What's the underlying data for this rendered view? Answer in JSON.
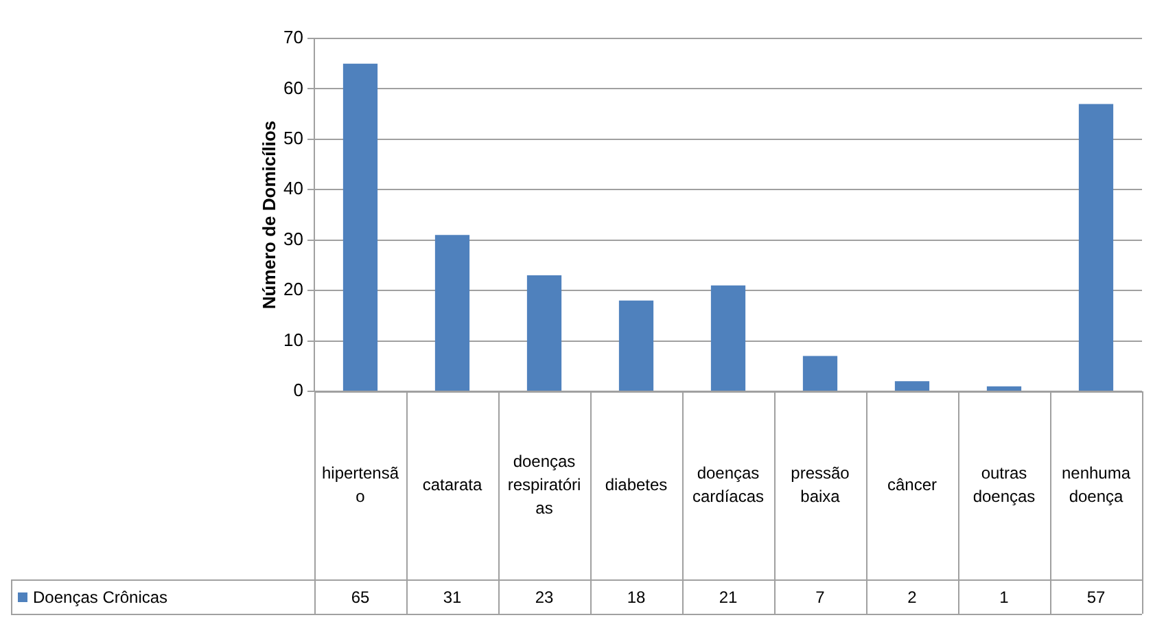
{
  "chart_data": {
    "type": "bar",
    "ylabel": "Número de Domicílios",
    "categories": [
      "hipertensão",
      "catarata",
      "doenças respiratórias",
      "diabetes",
      "doenças cardíacas",
      "pressão baixa",
      "câncer",
      "outras doenças",
      "nenhuma doença"
    ],
    "series": [
      {
        "name": "Doenças Crônicas",
        "color": "#4f81bd",
        "values": [
          65,
          31,
          23,
          18,
          21,
          7,
          2,
          1,
          57
        ]
      }
    ],
    "ylim": [
      0,
      70
    ],
    "yticks": [
      0,
      10,
      20,
      30,
      40,
      50,
      60,
      70
    ],
    "grid": "y",
    "legend": "bottom left",
    "data_labels": true
  }
}
